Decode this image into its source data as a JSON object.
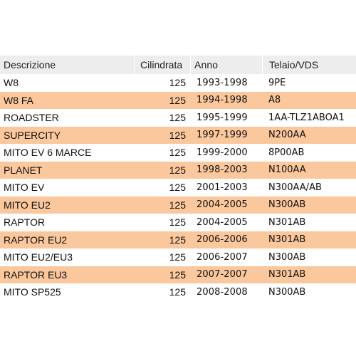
{
  "headers": {
    "descrizione": "Descrizione",
    "cilindrata": "Cilindrata",
    "anno": "Anno",
    "telaio": "Telaio/VDS"
  },
  "rows": [
    {
      "descrizione": "W8",
      "cilindrata": "125",
      "anno": "1993-1998",
      "telaio": "9PE"
    },
    {
      "descrizione": "W8 FA",
      "cilindrata": "125",
      "anno": "1994-1998",
      "telaio": "A8"
    },
    {
      "descrizione": "ROADSTER",
      "cilindrata": "125",
      "anno": "1995-1999",
      "telaio": "1AA-TLZ1ABOA1"
    },
    {
      "descrizione": "SUPERCITY",
      "cilindrata": "125",
      "anno": "1997-1999",
      "telaio": "N200AA"
    },
    {
      "descrizione": "MITO EV 6 MARCE",
      "cilindrata": "125",
      "anno": "1999-2000",
      "telaio": "8P00AB"
    },
    {
      "descrizione": "PLANET",
      "cilindrata": "125",
      "anno": "1998-2003",
      "telaio": "N100AA"
    },
    {
      "descrizione": "MITO EV",
      "cilindrata": "125",
      "anno": "2001-2003",
      "telaio": "N300AA/AB"
    },
    {
      "descrizione": "MITO EU2",
      "cilindrata": "125",
      "anno": "2004-2005",
      "telaio": "N300AB"
    },
    {
      "descrizione": "RAPTOR",
      "cilindrata": "125",
      "anno": "2004-2005",
      "telaio": "N301AB"
    },
    {
      "descrizione": "RAPTOR EU2",
      "cilindrata": "125",
      "anno": "2006-2006",
      "telaio": "N301AB"
    },
    {
      "descrizione": "MITO EU2/EU3",
      "cilindrata": "125",
      "anno": "2006-2007",
      "telaio": "N300AB"
    },
    {
      "descrizione": "RAPTOR EU3",
      "cilindrata": "125",
      "anno": "2007-2007",
      "telaio": "N301AB"
    },
    {
      "descrizione": "MITO SP525",
      "cilindrata": "125",
      "anno": "2008-2008",
      "telaio": "N300AB"
    }
  ],
  "colors": {
    "header_bg": "#ededed",
    "stripe_bg": "#fbc79d",
    "row_bg": "#ffffff"
  }
}
